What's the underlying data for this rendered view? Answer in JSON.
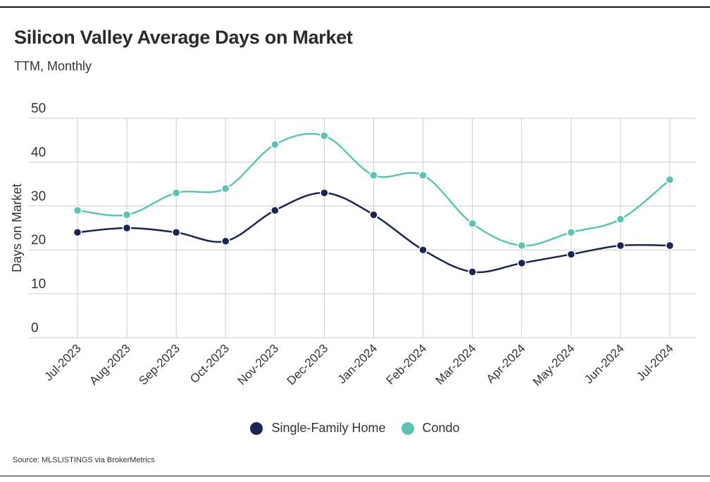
{
  "header": {
    "title": "Silicon Valley Average Days on Market",
    "subtitle": "TTM, Monthly"
  },
  "footer": {
    "source": "Source:  MLSLISTINGS via BrokerMetrics"
  },
  "colors": {
    "single_family": "#1c2454",
    "condo": "#5cc4b2",
    "grid": "#cccccc"
  },
  "chart_data": {
    "type": "line",
    "title": "Silicon Valley Average Days on Market",
    "subtitle": "TTM, Monthly",
    "xlabel": "",
    "ylabel": "Days on Market",
    "ylim": [
      0,
      50
    ],
    "yticks": [
      0,
      10,
      20,
      30,
      40,
      50
    ],
    "grid": true,
    "legend_position": "bottom",
    "categories": [
      "Jul-2023",
      "Aug-2023",
      "Sep-2023",
      "Oct-2023",
      "Nov-2023",
      "Dec-2023",
      "Jan-2024",
      "Feb-2024",
      "Mar-2024",
      "Apr-2024",
      "May-2024",
      "Jun-2024",
      "Jul-2024"
    ],
    "series": [
      {
        "name": "Single-Family Home",
        "color": "#1c2454",
        "values": [
          24,
          25,
          24,
          22,
          29,
          33,
          28,
          20,
          15,
          17,
          19,
          21,
          21
        ]
      },
      {
        "name": "Condo",
        "color": "#5cc4b2",
        "values": [
          29,
          28,
          33,
          34,
          44,
          46,
          37,
          37,
          26,
          21,
          24,
          27,
          36
        ]
      }
    ]
  }
}
